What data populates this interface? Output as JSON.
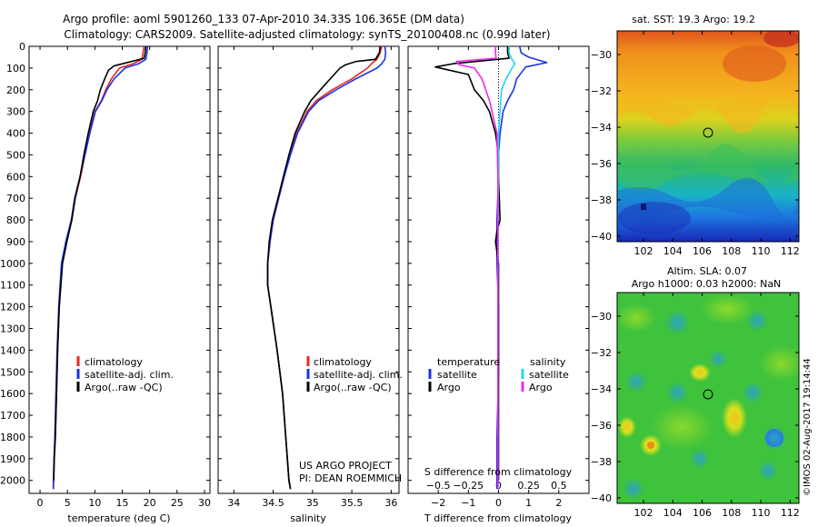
{
  "header": {
    "title_line1": "Argo profile: aoml 5901260_133 07-Apr-2010 34.33S 106.365E (DM data)",
    "title_line2": "Climatology: CARS2009. Satellite-adjusted climatology: synTS_20100408.nc (0.99d later)"
  },
  "colors": {
    "climatology": "#e8281e",
    "satellite": "#1a33e6",
    "argo": "#000000",
    "sal_satellite": "#22d8e8",
    "sal_argo": "#ea2bea"
  },
  "chart_data": [
    {
      "type": "line",
      "id": "temperature",
      "xlabel": "temperature (deg C)",
      "xlim": [
        -2,
        31
      ],
      "ylim": [
        0,
        2060
      ],
      "xticks": [
        0,
        5,
        10,
        15,
        20,
        25,
        30
      ],
      "yticks": [
        0,
        100,
        200,
        300,
        400,
        500,
        600,
        700,
        800,
        900,
        1000,
        1100,
        1200,
        1300,
        1400,
        1500,
        1600,
        1700,
        1800,
        1900,
        2000
      ],
      "legend": [
        "climatology",
        "satellite-adj. clim.",
        "Argo(..raw -QC)"
      ],
      "legend_position": "lower-center",
      "series": [
        {
          "name": "climatology",
          "key": "climatology",
          "x": [
            19.0,
            18.8,
            18.6,
            17.0,
            14.5,
            13.0,
            12.0,
            11.2,
            10.0,
            9.0,
            8.2,
            7.4,
            6.4,
            5.8,
            4.8,
            4.0,
            3.5,
            3.2,
            3.0,
            2.8,
            2.6,
            2.5,
            2.45
          ],
          "y": [
            0,
            30,
            60,
            80,
            100,
            150,
            200,
            250,
            300,
            400,
            500,
            600,
            700,
            800,
            900,
            1000,
            1200,
            1400,
            1600,
            1800,
            1900,
            2000,
            2040
          ]
        },
        {
          "name": "satellite-adj. clim.",
          "key": "satellite",
          "x": [
            19.6,
            19.5,
            19.3,
            18.0,
            15.5,
            13.5,
            12.2,
            11.3,
            10.1,
            9.1,
            8.2,
            7.3,
            6.3,
            5.7,
            4.7,
            3.9,
            3.4,
            3.1,
            2.9,
            2.7,
            2.55,
            2.45,
            2.4
          ],
          "y": [
            0,
            30,
            60,
            80,
            100,
            150,
            200,
            250,
            300,
            400,
            500,
            600,
            700,
            800,
            900,
            1000,
            1200,
            1400,
            1600,
            1800,
            1900,
            2000,
            2040
          ]
        },
        {
          "name": "Argo(..raw -QC)",
          "key": "argo",
          "x": [
            19.3,
            19.2,
            19.0,
            13.5,
            12.5,
            11.8,
            11.0,
            10.5,
            9.7,
            8.8,
            8.0,
            7.3,
            6.4,
            5.8,
            4.9,
            4.1,
            3.5,
            3.2,
            3.0,
            2.8,
            2.6,
            2.5
          ],
          "y": [
            0,
            30,
            55,
            90,
            110,
            150,
            200,
            250,
            300,
            400,
            500,
            600,
            700,
            800,
            900,
            1000,
            1200,
            1400,
            1600,
            1800,
            1900,
            2000
          ]
        }
      ]
    },
    {
      "type": "line",
      "id": "salinity",
      "xlabel": "salinity",
      "xlim": [
        33.8,
        36.1
      ],
      "ylim": [
        0,
        2060
      ],
      "xticks": [
        34,
        34.5,
        35,
        35.5,
        36
      ],
      "legend": [
        "climatology",
        "satellite-adj. clim.",
        "Argo(..raw -QC)"
      ],
      "legend_position": "lower-center",
      "annotation": [
        "US ARGO PROJECT",
        "PI: DEAN ROEMMICH"
      ],
      "series": [
        {
          "name": "climatology",
          "key": "climatology",
          "x": [
            35.88,
            35.86,
            35.82,
            35.75,
            35.7,
            35.5,
            35.25,
            35.05,
            34.93,
            34.8,
            34.71,
            34.64,
            34.57,
            34.5,
            34.46,
            34.43,
            34.43,
            34.47,
            34.55,
            34.62,
            34.66,
            34.7,
            34.72
          ],
          "y": [
            0,
            30,
            60,
            80,
            100,
            150,
            200,
            250,
            300,
            400,
            500,
            600,
            700,
            800,
            900,
            1000,
            1100,
            1200,
            1400,
            1600,
            1800,
            2000,
            2040
          ]
        },
        {
          "name": "satellite-adj. clim.",
          "key": "satellite",
          "x": [
            35.92,
            35.93,
            35.92,
            35.88,
            35.82,
            35.55,
            35.3,
            35.08,
            34.95,
            34.81,
            34.72,
            34.64,
            34.57,
            34.5,
            34.46,
            34.43,
            34.43,
            34.47,
            34.55,
            34.62,
            34.66,
            34.7,
            34.72
          ],
          "y": [
            0,
            30,
            60,
            80,
            100,
            150,
            200,
            250,
            300,
            400,
            500,
            600,
            700,
            800,
            900,
            1000,
            1100,
            1200,
            1400,
            1600,
            1800,
            2000,
            2040
          ]
        },
        {
          "name": "Argo(..raw -QC)",
          "key": "argo",
          "x": [
            35.86,
            35.85,
            35.8,
            35.55,
            35.42,
            35.35,
            35.1,
            34.98,
            34.9,
            34.78,
            34.7,
            34.63,
            34.56,
            34.49,
            34.45,
            34.43,
            34.43,
            34.47,
            34.55,
            34.62,
            34.66,
            34.7,
            34.72
          ],
          "y": [
            0,
            30,
            60,
            70,
            85,
            100,
            200,
            250,
            300,
            400,
            500,
            600,
            700,
            800,
            900,
            1000,
            1100,
            1200,
            1400,
            1600,
            1800,
            2000,
            2040
          ]
        }
      ]
    },
    {
      "type": "line",
      "id": "difference",
      "xlabel_top": "S difference from climatology",
      "xlabel": "T difference from climatology",
      "xlim": [
        -3.0,
        3.0
      ],
      "ylim": [
        0,
        2060
      ],
      "xticks_T": [
        -2,
        -1,
        0,
        1,
        2
      ],
      "xticks_S": [
        "-0.5",
        "-0.25",
        "0",
        "0.25",
        "0.5"
      ],
      "legend_temperature": {
        "title": "temperature",
        "items": [
          "satellite",
          "Argo"
        ]
      },
      "legend_salinity": {
        "title": "salinity",
        "items": [
          "satellite",
          "Argo"
        ]
      },
      "series": [
        {
          "name": "satellite",
          "key": "satellite",
          "group": "temperature",
          "x": [
            0.7,
            0.75,
            1.0,
            1.6,
            0.9,
            0.6,
            0.5,
            0.3,
            0.15,
            0.05,
            0.0,
            0.0,
            -0.05,
            -0.05,
            0.0,
            0.0,
            -0.05,
            -0.05
          ],
          "y": [
            0,
            30,
            50,
            75,
            95,
            150,
            200,
            250,
            300,
            400,
            500,
            600,
            800,
            1000,
            1200,
            1500,
            1800,
            2040
          ]
        },
        {
          "name": "Argo",
          "key": "argo",
          "group": "temperature",
          "x": [
            0.3,
            0.3,
            0.35,
            -1.5,
            -2.1,
            -1.0,
            -0.8,
            -0.5,
            -0.3,
            -0.1,
            0.0,
            0.0,
            0.05,
            -0.05,
            -0.1,
            0.0,
            0.0,
            0.0,
            0.0,
            0.0
          ],
          "y": [
            0,
            30,
            55,
            80,
            95,
            130,
            200,
            250,
            300,
            400,
            500,
            600,
            800,
            850,
            900,
            1000,
            1200,
            1500,
            1800,
            2000
          ]
        },
        {
          "name": "satellite",
          "key": "sal_satellite",
          "group": "salinity",
          "x": [
            0.35,
            0.35,
            0.45,
            0.55,
            0.45,
            0.25,
            0.1,
            0.05,
            0.0,
            0.0,
            -0.02,
            -0.02,
            -0.02,
            -0.02,
            -0.02
          ],
          "y": [
            0,
            30,
            60,
            80,
            100,
            150,
            200,
            300,
            400,
            600,
            800,
            1000,
            1400,
            1800,
            2040
          ]
        },
        {
          "name": "Argo",
          "key": "sal_argo",
          "group": "salinity",
          "x": [
            -0.1,
            -0.1,
            -0.08,
            -1.4,
            -1.3,
            -0.8,
            -0.55,
            -0.3,
            -0.05,
            -0.02,
            -0.02,
            -0.02,
            -0.02,
            -0.02,
            -0.02
          ],
          "y": [
            0,
            30,
            55,
            70,
            85,
            100,
            150,
            250,
            400,
            600,
            800,
            1000,
            1400,
            1800,
            2040
          ]
        }
      ]
    },
    {
      "type": "heatmap",
      "id": "sst_map",
      "title": "sat. SST: 19.3 Argo: 19.2",
      "xlim": [
        100.2,
        112.6
      ],
      "ylim": [
        -40.3,
        -28.7
      ],
      "xticks": [
        102,
        104,
        106,
        108,
        110,
        112
      ],
      "yticks": [
        -30,
        -32,
        -34,
        -36,
        -38,
        -40
      ],
      "marker": {
        "lon": 106.4,
        "lat": -34.3
      }
    },
    {
      "type": "heatmap",
      "id": "sla_map",
      "title_line1": "Altim. SLA: 0.07",
      "title_line2": "Argo h1000: 0.03 h2000: NaN",
      "xlim": [
        100.2,
        112.6
      ],
      "ylim": [
        -40.3,
        -28.7
      ],
      "xticks": [
        102,
        104,
        106,
        108,
        110,
        112
      ],
      "yticks": [
        -30,
        -32,
        -34,
        -36,
        -38,
        -40
      ],
      "marker": {
        "lon": 106.4,
        "lat": -34.3
      }
    }
  ],
  "footer": {
    "stamp": "©IMOS 02-Aug-2017 19:14:44"
  }
}
